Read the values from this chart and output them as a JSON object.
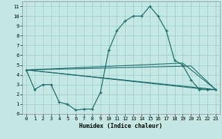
{
  "xlabel": "Humidex (Indice chaleur)",
  "bg_color": "#c5e8e5",
  "grid_color": "#9ecece",
  "line_color": "#1a6b6b",
  "xlim": [
    -0.5,
    23.5
  ],
  "ylim": [
    0,
    11.5
  ],
  "xticks": [
    0,
    1,
    2,
    3,
    4,
    5,
    6,
    7,
    8,
    9,
    10,
    11,
    12,
    13,
    14,
    15,
    16,
    17,
    18,
    19,
    20,
    21,
    22,
    23
  ],
  "yticks": [
    0,
    1,
    2,
    3,
    4,
    5,
    6,
    7,
    8,
    9,
    10,
    11
  ],
  "line1_x": [
    0,
    1,
    2,
    3,
    4,
    5,
    6,
    7,
    8,
    9,
    10,
    11,
    12,
    13,
    14,
    15,
    16,
    17,
    18,
    19,
    20,
    21,
    22,
    23
  ],
  "line1_y": [
    4.5,
    2.5,
    3.0,
    3.0,
    1.2,
    1.0,
    0.4,
    0.5,
    0.5,
    2.2,
    6.5,
    8.5,
    9.5,
    10.0,
    10.0,
    11.0,
    10.0,
    8.5,
    5.5,
    5.0,
    3.5,
    2.5,
    2.5,
    2.5
  ],
  "line2_x": [
    0,
    23
  ],
  "line2_y": [
    4.5,
    2.5
  ],
  "line3_x": [
    0,
    19,
    23
  ],
  "line3_y": [
    4.5,
    5.2,
    2.5
  ],
  "line4_x": [
    0,
    20,
    23
  ],
  "line4_y": [
    4.5,
    4.9,
    2.5
  ],
  "line5_x": [
    0,
    22,
    23
  ],
  "line5_y": [
    4.5,
    2.5,
    2.5
  ],
  "xlabel_fontsize": 6.0,
  "tick_fontsize": 5.0
}
